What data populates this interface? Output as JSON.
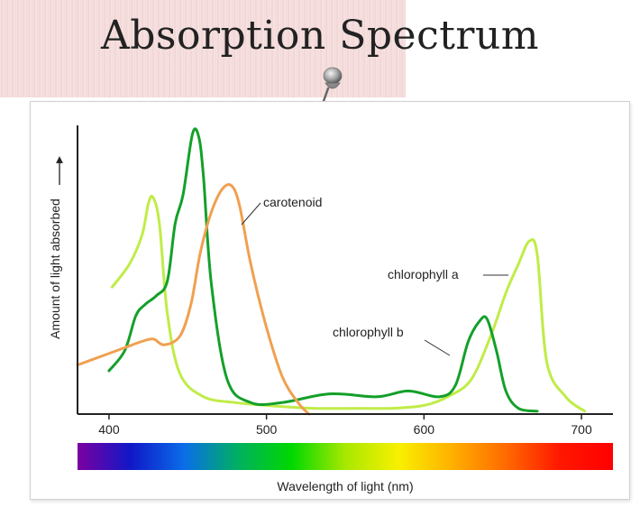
{
  "page": {
    "title": "Absorption Spectrum"
  },
  "chart_data": {
    "type": "line",
    "title": "Absorption Spectrum",
    "xlabel": "Wavelength of light (nm)",
    "ylabel": "Amount of light absorbed",
    "xlim": [
      380,
      720
    ],
    "ylim": [
      0,
      1
    ],
    "x_ticks": [
      400,
      500,
      600,
      700
    ],
    "grid": false,
    "spectrum_colors": [
      "#7b00a0",
      "#1018c8",
      "#0a6ee8",
      "#00b060",
      "#00d800",
      "#a8e800",
      "#f8f000",
      "#ffb000",
      "#ff6a00",
      "#ff1800",
      "#ff0000"
    ],
    "series": [
      {
        "name": "chlorophyll a",
        "color": "#c0ec48",
        "x": [
          402,
          413,
          421,
          425,
          428,
          432,
          437,
          445,
          460,
          480,
          500,
          530,
          560,
          580,
          600,
          615,
          630,
          643,
          652,
          660,
          667,
          672,
          678,
          690,
          702
        ],
        "y": [
          0.44,
          0.52,
          0.62,
          0.73,
          0.75,
          0.66,
          0.35,
          0.14,
          0.06,
          0.04,
          0.03,
          0.02,
          0.02,
          0.02,
          0.03,
          0.06,
          0.12,
          0.28,
          0.42,
          0.52,
          0.6,
          0.55,
          0.18,
          0.06,
          0.01
        ]
      },
      {
        "name": "chlorophyll b",
        "color": "#14a02a",
        "x": [
          400,
          410,
          417,
          423,
          430,
          437,
          442,
          447,
          453,
          457,
          460,
          465,
          475,
          490,
          510,
          540,
          570,
          590,
          610,
          620,
          628,
          635,
          640,
          646,
          652,
          660,
          672
        ],
        "y": [
          0.15,
          0.22,
          0.34,
          0.38,
          0.41,
          0.46,
          0.66,
          0.76,
          0.97,
          0.96,
          0.82,
          0.45,
          0.12,
          0.04,
          0.04,
          0.07,
          0.06,
          0.08,
          0.06,
          0.1,
          0.25,
          0.32,
          0.33,
          0.22,
          0.08,
          0.02,
          0.01
        ]
      },
      {
        "name": "carotenoid",
        "color": "#f0a050",
        "x": [
          380,
          395,
          410,
          420,
          428,
          435,
          445,
          452,
          458,
          465,
          472,
          478,
          483,
          490,
          500,
          510,
          520,
          527
        ],
        "y": [
          0.17,
          0.2,
          0.23,
          0.25,
          0.26,
          0.24,
          0.27,
          0.38,
          0.56,
          0.7,
          0.78,
          0.79,
          0.72,
          0.52,
          0.3,
          0.13,
          0.04,
          0.0
        ]
      }
    ],
    "annotations": [
      {
        "text": "carotenoid",
        "series": "carotenoid"
      },
      {
        "text": "chlorophyll a",
        "series": "chlorophyll a"
      },
      {
        "text": "chlorophyll b",
        "series": "chlorophyll b"
      }
    ]
  }
}
